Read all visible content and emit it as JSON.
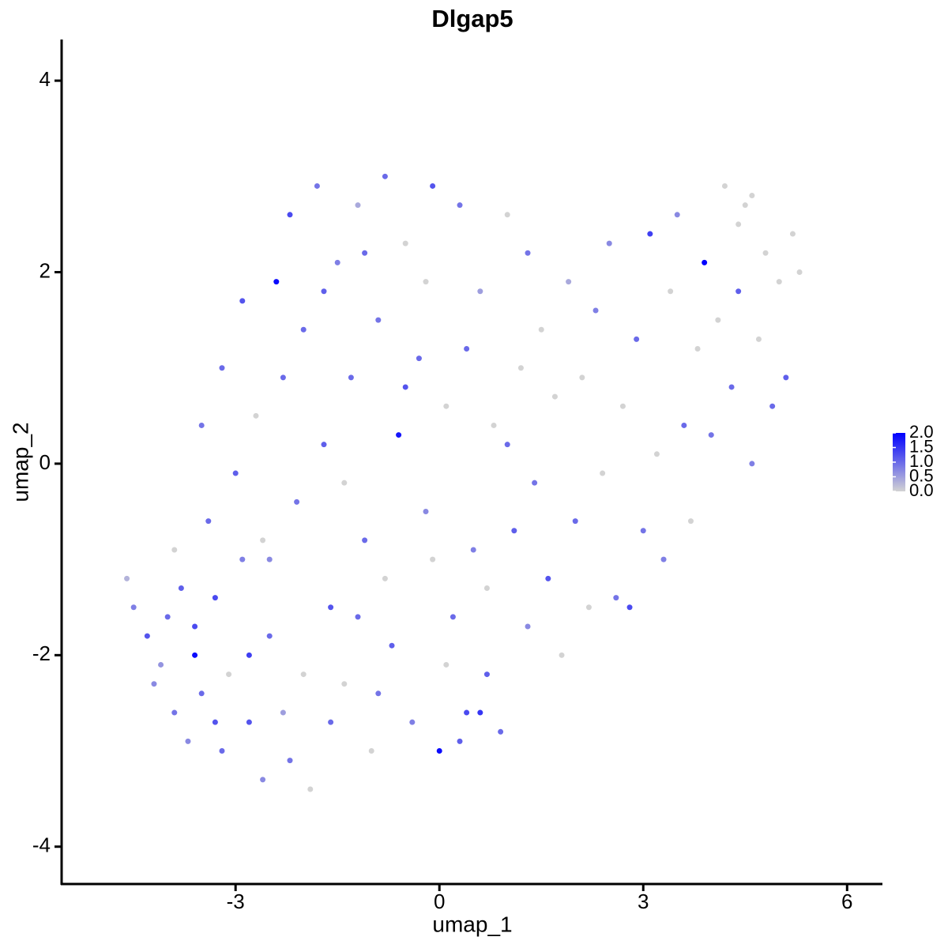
{
  "chart_data": {
    "type": "scatter",
    "title": "Dlgap5",
    "x_label": "umap_1",
    "y_label": "umap_2",
    "xlim": [
      -5.56,
      6.52
    ],
    "ylim": [
      -4.39,
      4.43
    ],
    "xticks": [
      -3,
      0,
      3,
      6
    ],
    "yticks": [
      -4,
      -2,
      0,
      2,
      4
    ],
    "colorscale": [
      "#d3d3d3",
      "#0000ff"
    ],
    "clim": [
      0,
      2
    ],
    "colorbar_ticks": [
      {
        "value": 2,
        "label": "2.0"
      },
      {
        "value": 1.5,
        "label": "1.5"
      },
      {
        "value": 1,
        "label": "1.0"
      },
      {
        "value": 0.5,
        "label": "0.5"
      },
      {
        "value": 0,
        "label": "0.0"
      }
    ],
    "x": [
      -4.6,
      -4.5,
      -4.3,
      -4.1,
      -4.0,
      -3.9,
      -3.8,
      -3.7,
      -3.6,
      -3.5,
      -3.4,
      -3.3,
      -3.2,
      -3.1,
      -3.0,
      -2.9,
      -2.8,
      -2.7,
      -2.6,
      -2.5,
      -2.4,
      -2.3,
      -2.2,
      -2.1,
      -2.0,
      -1.9,
      -1.8,
      -1.7,
      -1.6,
      -1.5,
      -1.4,
      -1.3,
      -1.2,
      -1.1,
      -1.0,
      -0.9,
      -0.8,
      -0.7,
      -0.6,
      -0.5,
      -0.4,
      -0.3,
      -0.2,
      -0.1,
      0.0,
      0.1,
      0.2,
      0.3,
      0.4,
      0.5,
      0.6,
      0.7,
      0.8,
      0.9,
      1.0,
      1.1,
      1.2,
      1.3,
      1.4,
      1.5,
      1.6,
      1.7,
      1.8,
      1.9,
      2.0,
      2.1,
      2.2,
      2.3,
      2.4,
      2.5,
      2.6,
      2.7,
      2.8,
      2.9,
      3.0,
      3.1,
      3.2,
      3.3,
      3.4,
      3.5,
      3.6,
      3.7,
      3.8,
      3.9,
      4.0,
      4.1,
      4.2,
      4.3,
      4.4,
      4.5,
      4.6,
      4.7,
      4.8,
      4.9,
      5.0,
      5.1,
      5.2,
      5.3,
      4.4,
      4.6,
      -3.9,
      -3.5,
      -3.2,
      -2.9,
      -2.6,
      -2.3,
      -2.0,
      -1.7,
      -1.4,
      -1.1,
      -0.8,
      -0.5,
      -0.2,
      0.1,
      0.4,
      0.7,
      1.0,
      1.3,
      -2.8,
      -3.3,
      -2.2,
      -1.6,
      -0.9,
      0.3,
      0.6,
      -4.2,
      -3.6,
      -2.5,
      -1.2,
      -0.1
    ],
    "y": [
      -1.2,
      -1.5,
      -1.8,
      -2.1,
      -1.6,
      -2.6,
      -1.3,
      -2.9,
      -2.0,
      -2.4,
      -0.6,
      -1.4,
      -3.0,
      -2.2,
      -0.1,
      -1.0,
      -2.7,
      0.5,
      -3.3,
      -1.8,
      1.9,
      -2.6,
      2.6,
      -0.4,
      1.4,
      -3.4,
      2.9,
      0.2,
      -1.5,
      2.1,
      -2.3,
      0.9,
      2.7,
      -0.8,
      -3.0,
      1.5,
      3.0,
      -1.9,
      0.3,
      2.3,
      -2.7,
      1.1,
      -0.5,
      2.9,
      -3.0,
      0.6,
      -1.6,
      2.7,
      -2.6,
      -0.9,
      1.8,
      -2.2,
      0.4,
      -2.8,
      2.6,
      -0.7,
      1.0,
      -1.7,
      -0.2,
      1.4,
      -1.2,
      0.7,
      -2.0,
      1.9,
      -0.6,
      0.9,
      -1.5,
      1.6,
      -0.1,
      2.3,
      -1.4,
      0.6,
      -1.5,
      1.3,
      -0.7,
      2.4,
      0.1,
      -1.0,
      1.8,
      2.6,
      0.4,
      -0.6,
      1.2,
      2.1,
      0.3,
      1.5,
      2.9,
      0.8,
      1.8,
      2.7,
      0.0,
      1.3,
      2.2,
      0.6,
      1.9,
      0.9,
      2.4,
      2.0,
      2.5,
      2.8,
      -0.9,
      0.4,
      1.0,
      1.7,
      -0.8,
      0.9,
      -2.2,
      1.8,
      -0.2,
      2.2,
      -1.2,
      0.8,
      1.9,
      -2.1,
      1.2,
      -1.3,
      0.2,
      2.2,
      -2.0,
      -2.7,
      -3.1,
      -2.7,
      -2.4,
      -2.9,
      -2.6,
      -2.3,
      -1.7,
      -1.0,
      -1.6,
      -1.0
    ],
    "values": [
      0.3,
      0.8,
      1.2,
      0.6,
      1.0,
      0.9,
      1.1,
      0.7,
      1.9,
      1.0,
      1.0,
      1.3,
      1.0,
      0,
      1.1,
      0.8,
      1.2,
      0,
      0.7,
      1.0,
      1.9,
      0.5,
      1.3,
      0.9,
      1.0,
      0,
      0.9,
      1.1,
      1.2,
      0.8,
      0,
      1.0,
      0.4,
      1.0,
      0,
      0.9,
      1.0,
      1.1,
      1.8,
      0,
      0.8,
      1.0,
      0.7,
      1.2,
      1.9,
      0,
      1.0,
      0.9,
      1.3,
      0.8,
      0.5,
      1.1,
      0,
      1.0,
      0,
      1.1,
      0,
      0.7,
      0.9,
      0,
      1.2,
      0,
      0,
      0.4,
      1.0,
      0,
      0,
      0.8,
      0,
      0.7,
      0.9,
      0,
      1.3,
      1.0,
      0.9,
      1.4,
      0,
      0.8,
      0,
      0.7,
      1.0,
      0,
      0,
      2.0,
      0.9,
      0,
      0,
      1.0,
      1.1,
      0,
      0.8,
      0,
      0,
      1.0,
      0,
      1.1,
      0,
      0,
      0,
      0,
      0,
      0.9,
      1.0,
      1.2,
      0,
      1.0,
      0,
      1.1,
      0,
      1.0,
      0,
      1.2,
      0,
      0,
      1.0,
      0,
      1.0,
      0.9,
      1.4,
      1.2,
      0.9,
      1.0,
      0.9,
      1.1,
      1.5,
      0.7,
      1.3,
      0.7,
      1.0,
      0
    ]
  }
}
